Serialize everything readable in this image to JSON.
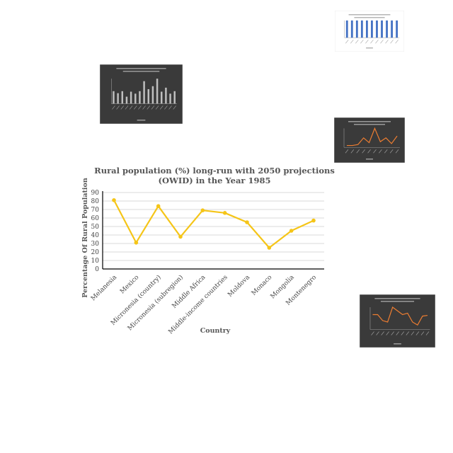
{
  "chart_data": {
    "type": "line",
    "title_line1": "Rural population (%) long-run with 2050 projections",
    "title_line2": "(OWID) in the Year 1985",
    "xlabel": "Country",
    "ylabel": "Percentage Of Rural  Population",
    "ylim": [
      0,
      90
    ],
    "yticks": [
      0,
      10,
      20,
      30,
      40,
      50,
      60,
      70,
      80,
      90
    ],
    "grid": true,
    "categories": [
      "Melanesia",
      "Mexico",
      "Micronesia (country)",
      "Micronesia (subregion)",
      "Middle Africa",
      "Middle-income countries",
      "Moldova",
      "Monaco",
      "Mongolia",
      "Montenegro"
    ],
    "series": [
      {
        "values": [
          81,
          31,
          74,
          38,
          69,
          66,
          55,
          25,
          45,
          57
        ]
      }
    ],
    "colors": {
      "line": "#F5C518",
      "grid": "#d9d9d9",
      "axis": "#000000"
    }
  },
  "thumbnails": [
    {
      "name": "urban-population-thumbnail",
      "type": "bar",
      "values": [
        6,
        6,
        6,
        6,
        6,
        6,
        6,
        6,
        6,
        6,
        6
      ],
      "color": "#4472C4",
      "background": "#ffffff"
    },
    {
      "name": "air-quality-bar-thumbnail",
      "type": "bar",
      "values": [
        25,
        21,
        25,
        14,
        24,
        20,
        25,
        45,
        29,
        35,
        50,
        24,
        32,
        20,
        25
      ],
      "color": "#bfbfbf",
      "background": "#3a3a3a"
    },
    {
      "name": "business-enterprise-line-thumbnail",
      "type": "line",
      "values": [
        2,
        2,
        3,
        10,
        5,
        20,
        6,
        10,
        4,
        12
      ],
      "color": "#ED7D31",
      "background": "#3a3a3a"
    },
    {
      "name": "air-quality-line-thumbnail",
      "type": "line",
      "values": [
        20,
        20,
        12,
        10,
        30,
        25,
        20,
        22,
        10,
        6,
        18,
        19
      ],
      "color": "#ED7D31",
      "background": "#3a3a3a"
    }
  ]
}
